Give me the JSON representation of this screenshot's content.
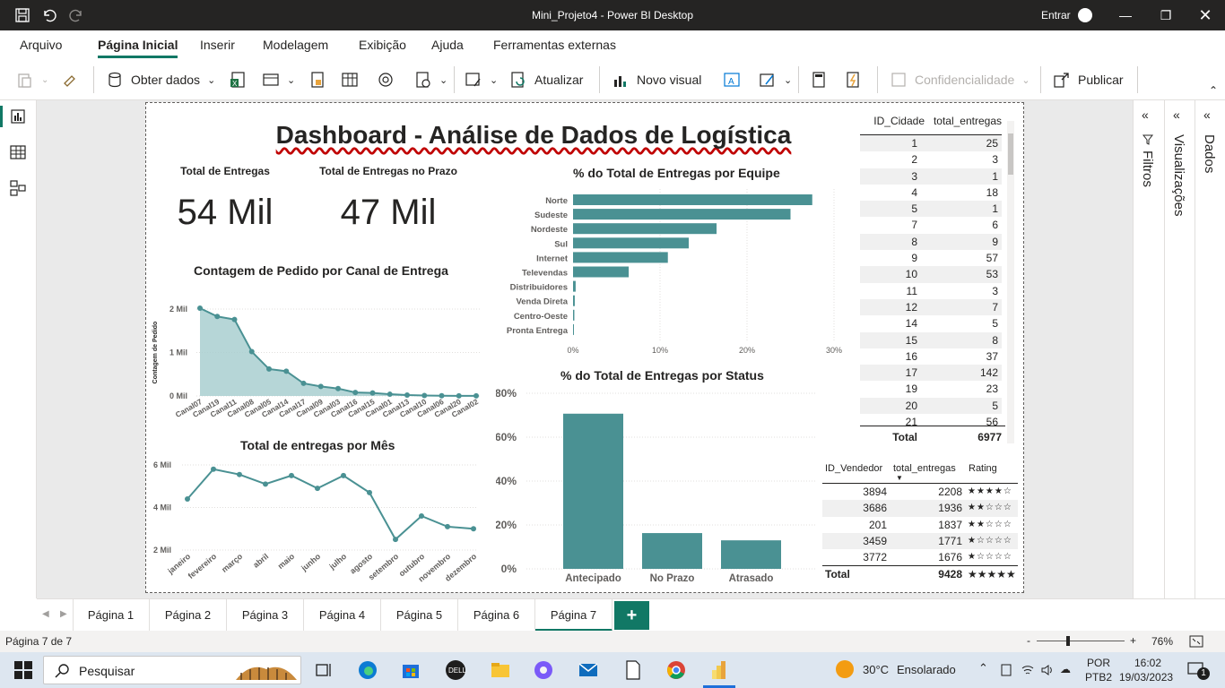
{
  "window": {
    "title": "Mini_Projeto4 - Power BI Desktop",
    "signin": "Entrar"
  },
  "menu": {
    "items": [
      "Arquivo",
      "Página Inicial",
      "Inserir",
      "Modelagem",
      "Exibição",
      "Ajuda",
      "Ferramentas externas"
    ],
    "active": "Página Inicial"
  },
  "ribbon": {
    "get_data": "Obter dados",
    "refresh": "Atualizar",
    "new_visual": "Novo visual",
    "sensitivity": "Confidencialidade",
    "publish": "Publicar"
  },
  "report": {
    "title": "Dashboard - Análise de Dados de Logística",
    "kpi1": {
      "label": "Total de Entregas",
      "value": "54 Mil"
    },
    "kpi2": {
      "label": "Total de Entregas no Prazo",
      "value": "47 Mil"
    },
    "team_title": "% do Total de Entregas por Equipe",
    "canal_title": "Contagem de Pedido por Canal de Entrega",
    "canal_ylabel": "Contagem de Pedido",
    "mes_title": "Total de entregas por Mês",
    "status_title": "% do Total de Entregas por Status"
  },
  "chart_data": [
    {
      "type": "bar",
      "orientation": "horizontal",
      "title": "% do Total de Entregas por Equipe",
      "categories": [
        "Norte",
        "Sudeste",
        "Nordeste",
        "Sul",
        "Internet",
        "Televendas",
        "Distribuidores",
        "Venda Direta",
        "Centro-Oeste",
        "Pronta Entrega"
      ],
      "values": [
        27.5,
        25,
        16.5,
        13.3,
        10.9,
        6.4,
        0.3,
        0.2,
        0.15,
        0.1
      ],
      "xticks": [
        "0%",
        "10%",
        "20%",
        "30%"
      ],
      "xlim": [
        0,
        30
      ],
      "color": "#4a9193"
    },
    {
      "type": "area",
      "title": "Contagem de Pedido por Canal de Entrega",
      "ylabel": "Contagem de Pedido",
      "categories": [
        "Canal07",
        "Canal19",
        "Canal11",
        "Canal08",
        "Canal05",
        "Canal14",
        "Canal17",
        "Canal09",
        "Canal03",
        "Canal16",
        "Canal15",
        "Canal01",
        "Canal13",
        "Canal10",
        "Canal06",
        "Canal20",
        "Canal02"
      ],
      "values": [
        2020,
        1830,
        1760,
        1020,
        620,
        570,
        290,
        220,
        170,
        80,
        70,
        40,
        20,
        10,
        5,
        3,
        2
      ],
      "yticks": [
        "0 Mil",
        "1 Mil",
        "2 Mil"
      ],
      "ylim": [
        0,
        2000
      ],
      "color": "#4a9193"
    },
    {
      "type": "line",
      "title": "Total de entregas por Mês",
      "categories": [
        "janeiro",
        "fevereiro",
        "março",
        "abril",
        "maio",
        "junho",
        "julho",
        "agosto",
        "setembro",
        "outubro",
        "novembro",
        "dezembro"
      ],
      "values": [
        4400,
        5800,
        5550,
        5100,
        5500,
        4900,
        5500,
        4700,
        2500,
        3600,
        3100,
        3000
      ],
      "yticks": [
        "2 Mil",
        "4 Mil",
        "6 Mil"
      ],
      "ylim": [
        2000,
        6000
      ],
      "color": "#4a9193"
    },
    {
      "type": "bar",
      "title": "% do Total de Entregas por Status",
      "categories": [
        "Antecipado",
        "No Prazo",
        "Atrasado"
      ],
      "values": [
        70.7,
        16.3,
        13.0
      ],
      "yticks": [
        "0%",
        "20%",
        "40%",
        "60%",
        "80%"
      ],
      "ylim": [
        0,
        80
      ],
      "color": "#4a9193"
    }
  ],
  "cidade_table": {
    "headers": [
      "ID_Cidade",
      "total_entregas"
    ],
    "rows": [
      [
        "1",
        "25"
      ],
      [
        "2",
        "3"
      ],
      [
        "3",
        "1"
      ],
      [
        "4",
        "18"
      ],
      [
        "5",
        "1"
      ],
      [
        "7",
        "6"
      ],
      [
        "8",
        "9"
      ],
      [
        "9",
        "57"
      ],
      [
        "10",
        "53"
      ],
      [
        "11",
        "3"
      ],
      [
        "12",
        "7"
      ],
      [
        "14",
        "5"
      ],
      [
        "15",
        "8"
      ],
      [
        "16",
        "37"
      ],
      [
        "17",
        "142"
      ],
      [
        "19",
        "23"
      ],
      [
        "20",
        "5"
      ],
      [
        "21",
        "56"
      ]
    ],
    "total_label": "Total",
    "total_value": "6977"
  },
  "vendedor_table": {
    "headers": [
      "ID_Vendedor",
      "total_entregas",
      "Rating"
    ],
    "rows": [
      [
        "3894",
        "2208",
        "★★★★☆"
      ],
      [
        "3686",
        "1936",
        "★★☆☆☆"
      ],
      [
        "201",
        "1837",
        "★★☆☆☆"
      ],
      [
        "3459",
        "1771",
        "★☆☆☆☆"
      ],
      [
        "3772",
        "1676",
        "★☆☆☆☆"
      ]
    ],
    "total_label": "Total",
    "total_value": "9428",
    "total_rating": "★★★★★"
  },
  "panes": {
    "filters": "Filtros",
    "visualizations": "Visualizações",
    "data": "Dados"
  },
  "pages": {
    "tabs": [
      "Página 1",
      "Página 2",
      "Página 3",
      "Página 4",
      "Página 5",
      "Página 6",
      "Página 7"
    ],
    "active": "Página 7",
    "add": "+"
  },
  "status": {
    "page": "Página 7 de 7",
    "zoom": "76%",
    "zoom_minus": "-",
    "zoom_plus": "+"
  },
  "taskbar": {
    "search": "Pesquisar",
    "weather_temp": "30°C",
    "weather_desc": "Ensolarado",
    "lang1": "POR",
    "lang2": "PTB2",
    "time": "16:02",
    "date": "19/03/2023",
    "notif": "1"
  }
}
